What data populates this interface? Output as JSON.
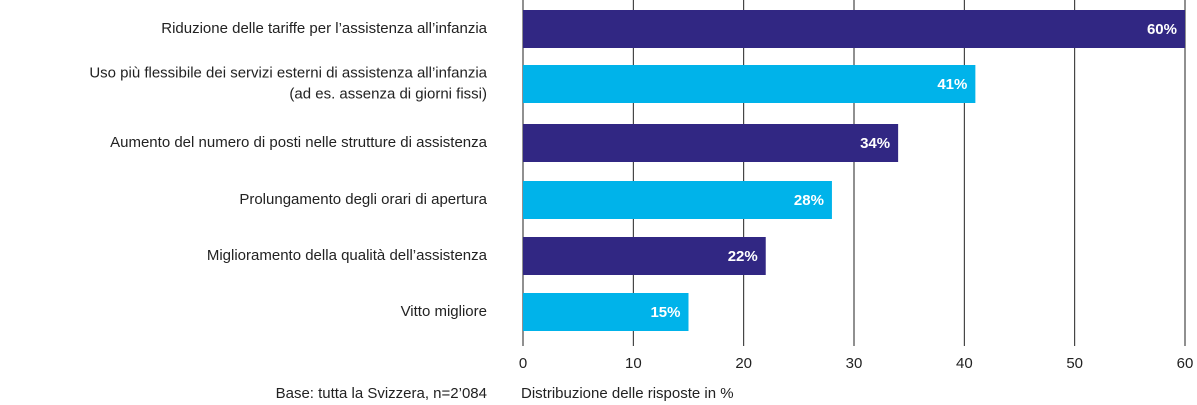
{
  "chart_data": {
    "type": "hbar",
    "categories": [
      "Riduzione delle tariffe per l’assistenza all’infanzia",
      [
        "Uso più flessibile dei servizi esterni di assistenza all’infanzia",
        "(ad es. assenza di giorni fissi)"
      ],
      "Aumento del numero di posti nelle strutture di assistenza",
      "Prolungamento degli orari di apertura",
      "Miglioramento della qualità dell’assistenza",
      "Vitto migliore"
    ],
    "values": [
      60,
      41,
      34,
      28,
      22,
      15
    ],
    "value_labels": [
      "60%",
      "41%",
      "34%",
      "28%",
      "22%",
      "15%"
    ],
    "colors": [
      "#312783",
      "#00b3ea",
      "#312783",
      "#00b3ea",
      "#312783",
      "#00b3ea"
    ],
    "xlim": [
      0,
      60
    ],
    "xticks": [
      0,
      10,
      20,
      30,
      40,
      50,
      60
    ],
    "grid": true,
    "xlabel": "Distribuzione delle risposte in %",
    "note": "Base: tutta la Svizzera, n=2’084"
  }
}
